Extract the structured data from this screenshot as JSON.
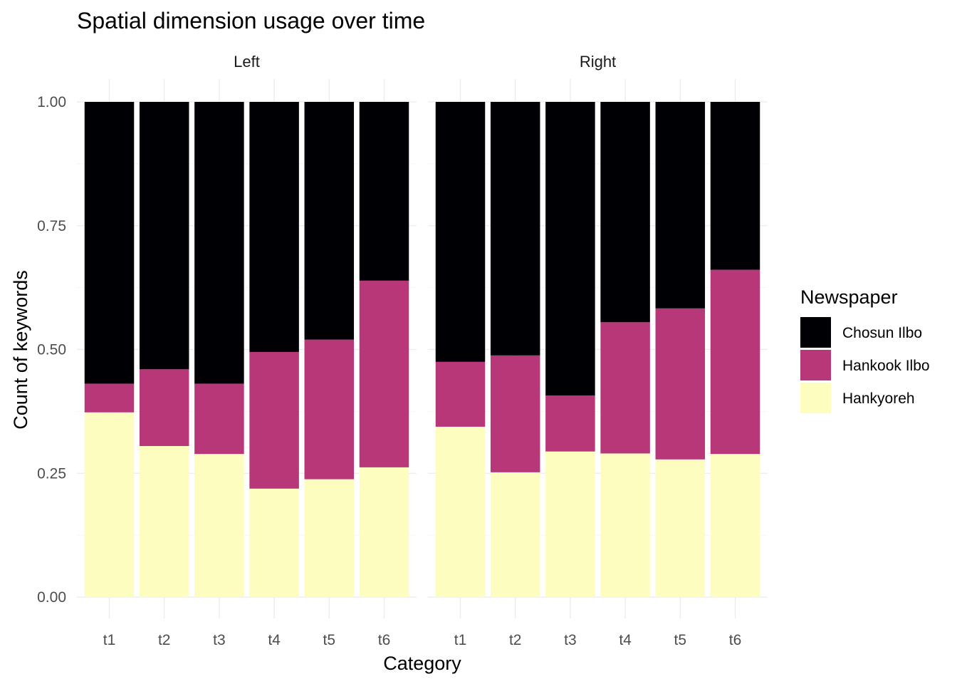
{
  "chart_data": {
    "type": "bar",
    "stacked": "fill",
    "title": "Spatial dimension usage over time",
    "xlabel": "Category",
    "ylabel": "Count of keywords",
    "ylim": [
      0,
      1
    ],
    "yticks": [
      "0.00",
      "0.25",
      "0.50",
      "0.75",
      "1.00"
    ],
    "categories": [
      "t1",
      "t2",
      "t3",
      "t4",
      "t5",
      "t6"
    ],
    "legend": {
      "title": "Newspaper",
      "position": "right",
      "entries": [
        {
          "name": "Chosun Ilbo",
          "color": "#000004"
        },
        {
          "name": "Hankook Ilbo",
          "color": "#b73779"
        },
        {
          "name": "Hankyoreh",
          "color": "#fcfdbf"
        }
      ]
    },
    "panels": [
      {
        "label": "Left",
        "series": [
          {
            "name": "Hankyoreh",
            "color": "#fcfdbf",
            "values": [
              0.373,
              0.305,
              0.289,
              0.219,
              0.238,
              0.262
            ]
          },
          {
            "name": "Hankook Ilbo",
            "color": "#b73779",
            "values": [
              0.058,
              0.155,
              0.142,
              0.276,
              0.282,
              0.377
            ]
          },
          {
            "name": "Chosun Ilbo",
            "color": "#000004",
            "values": [
              0.569,
              0.54,
              0.569,
              0.505,
              0.48,
              0.361
            ]
          }
        ]
      },
      {
        "label": "Right",
        "series": [
          {
            "name": "Hankyoreh",
            "color": "#fcfdbf",
            "values": [
              0.344,
              0.252,
              0.294,
              0.29,
              0.278,
              0.289
            ]
          },
          {
            "name": "Hankook Ilbo",
            "color": "#b73779",
            "values": [
              0.131,
              0.236,
              0.113,
              0.265,
              0.305,
              0.372
            ]
          },
          {
            "name": "Chosun Ilbo",
            "color": "#000004",
            "values": [
              0.525,
              0.512,
              0.593,
              0.445,
              0.417,
              0.339
            ]
          }
        ]
      }
    ]
  }
}
